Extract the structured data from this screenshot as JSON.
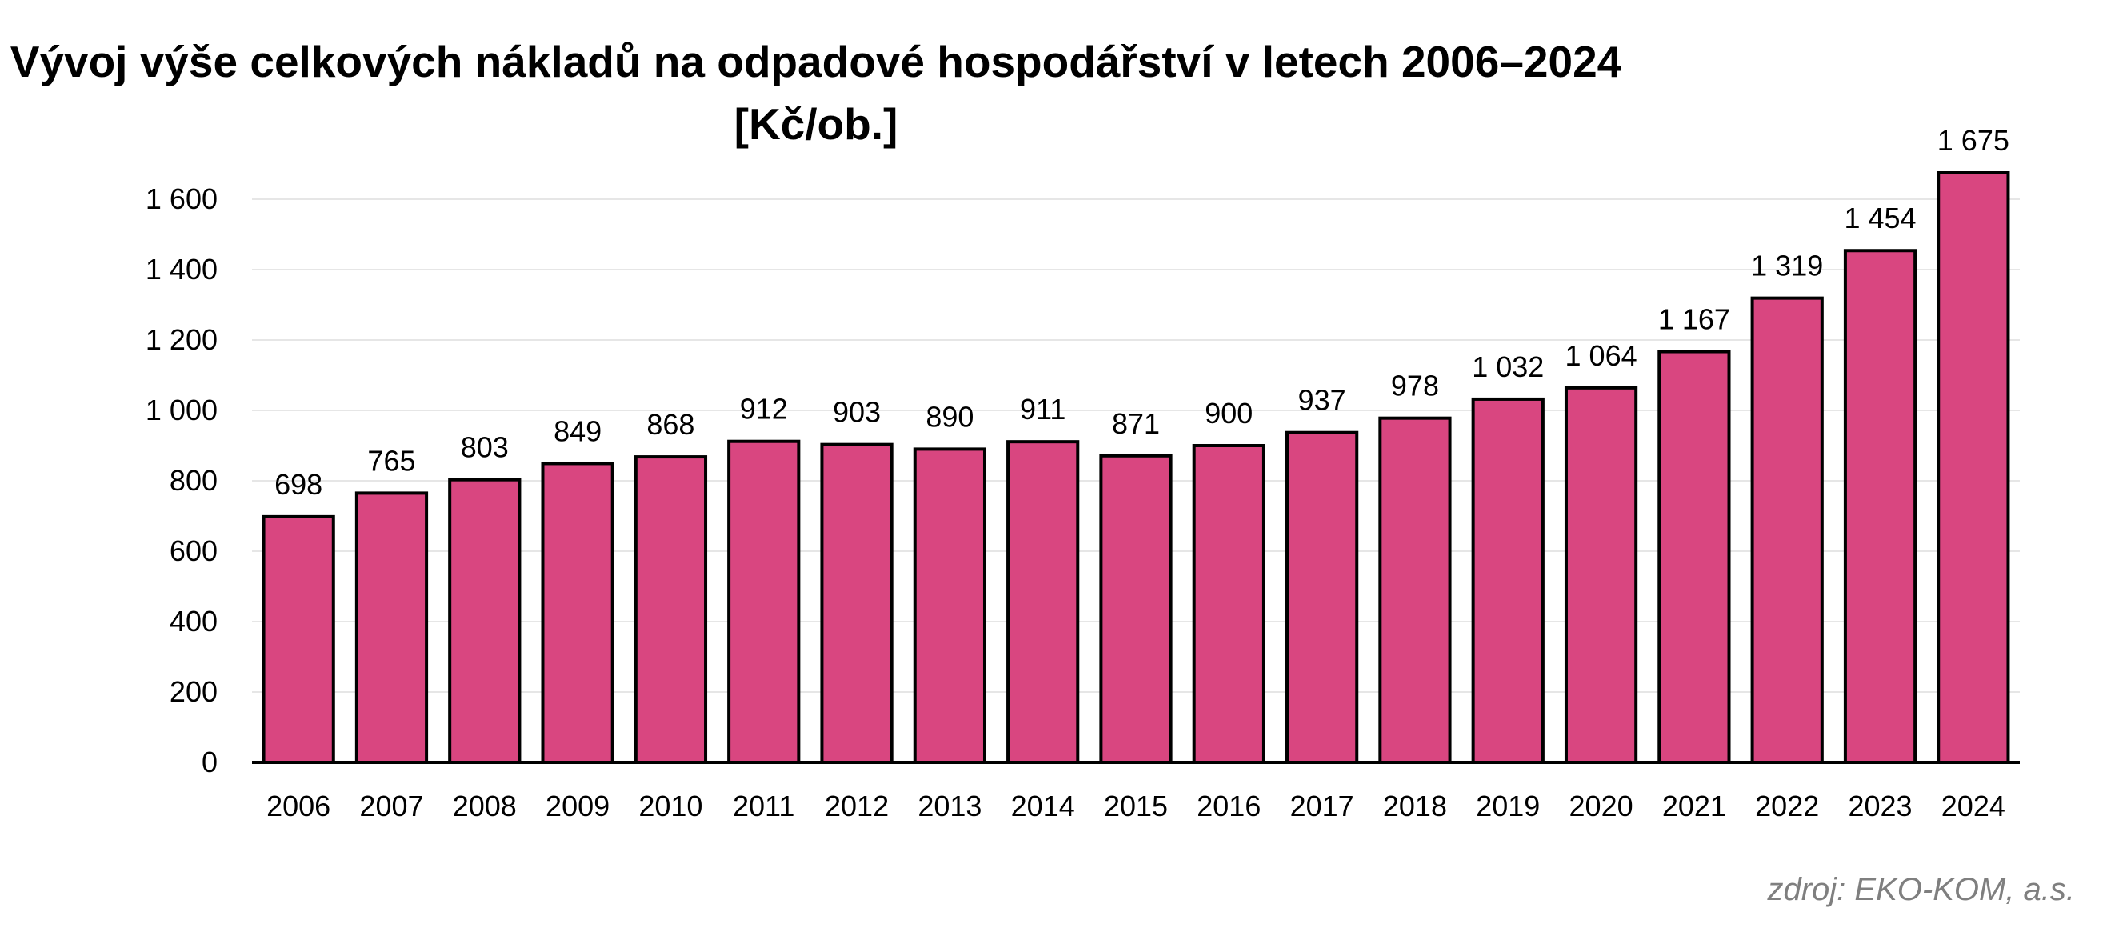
{
  "chart_data": {
    "type": "bar",
    "title": "Vývoj výše celkových nákladů na odpadové hospodářství v letech 2006–2024",
    "subtitle": "[Kč/ob.]",
    "xlabel": "",
    "ylabel": "",
    "categories": [
      "2006",
      "2007",
      "2008",
      "2009",
      "2010",
      "2011",
      "2012",
      "2013",
      "2014",
      "2015",
      "2016",
      "2017",
      "2018",
      "2019",
      "2020",
      "2021",
      "2022",
      "2023",
      "2024"
    ],
    "values": [
      698,
      765,
      803,
      849,
      868,
      912,
      903,
      890,
      911,
      871,
      900,
      937,
      978,
      1032,
      1064,
      1167,
      1319,
      1454,
      1675
    ],
    "value_labels": [
      "698",
      "765",
      "803",
      "849",
      "868",
      "912",
      "903",
      "890",
      "911",
      "871",
      "900",
      "937",
      "978",
      "1 032",
      "1 064",
      "1 167",
      "1 319",
      "1 454",
      "1 675"
    ],
    "ylim": [
      0,
      1600
    ],
    "yticks": [
      0,
      200,
      400,
      600,
      800,
      1000,
      1200,
      1400,
      1600
    ],
    "ytick_labels": [
      "0",
      "200",
      "400",
      "600",
      "800",
      "1 000",
      "1 200",
      "1 400",
      "1 600"
    ],
    "grid": true,
    "legend": "none",
    "colors": {
      "bar_fill": "#d94680",
      "bar_stroke": "#000000",
      "grid": "#e6e6e6",
      "axis": "#000000"
    }
  },
  "source_note": "zdroj: EKO-KOM, a.s."
}
